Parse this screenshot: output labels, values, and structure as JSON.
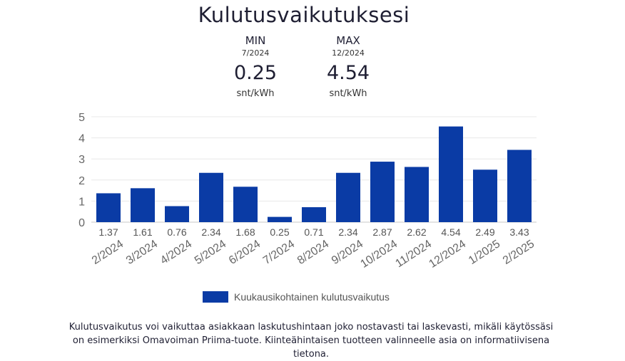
{
  "title": "Kulutusvaikutuksesi",
  "stats": {
    "min": {
      "label": "MIN",
      "date": "7/2024",
      "value": "0.25",
      "unit": "snt/kWh"
    },
    "max": {
      "label": "MAX",
      "date": "12/2024",
      "value": "4.54",
      "unit": "snt/kWh"
    }
  },
  "chart_data": {
    "type": "bar",
    "categories": [
      "2/2024",
      "3/2024",
      "4/2024",
      "5/2024",
      "6/2024",
      "7/2024",
      "8/2024",
      "9/2024",
      "10/2024",
      "11/2024",
      "12/2024",
      "1/2025",
      "2/2025"
    ],
    "series": [
      {
        "name": "Kuukausikohtainen kulutusvaikutus",
        "values": [
          1.37,
          1.61,
          0.76,
          2.34,
          1.68,
          0.25,
          0.71,
          2.34,
          2.87,
          2.62,
          4.54,
          2.49,
          3.43
        ],
        "color": "#0a3ba5"
      }
    ],
    "data_labels": [
      "1.37",
      "1.61",
      "0.76",
      "2.34",
      "1.68",
      "0.25",
      "0.71",
      "2.34",
      "2.87",
      "2.62",
      "4.54",
      "2.49",
      "3.43"
    ],
    "yticks": [
      "0",
      "1",
      "2",
      "3",
      "4",
      "5"
    ],
    "ylim": [
      0,
      5
    ],
    "grid": true,
    "legend_position": "bottom"
  },
  "legend": {
    "label": "Kuukausikohtainen kulutusvaikutus"
  },
  "note": "Kulutusvaikutus voi vaikuttaa asiakkaan laskutushintaan joko nostavasti tai laskevasti, mikäli käytössäsi on esimerkiksi Omavoiman Priima-tuote. Kiinteähintaisen tuotteen valinneelle asia on informatiivisena tietona."
}
